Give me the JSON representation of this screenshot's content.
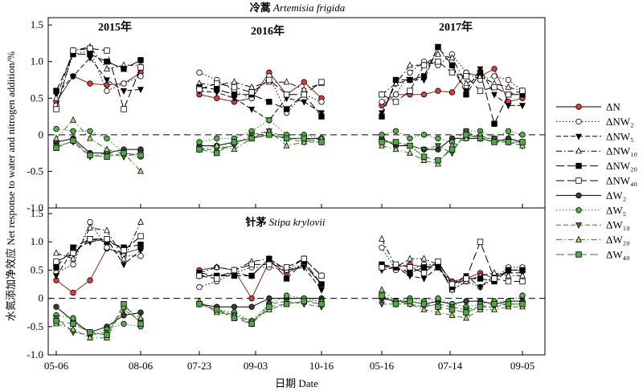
{
  "chart_data": {
    "type": "line",
    "ylabel": "水氮添加净效应 Net response to water and nitrogen addition/%",
    "xlabel": "日期 Date",
    "x_tick_labels": [
      "05-06",
      "08-06",
      "07-23",
      "09-03",
      "10-16",
      "05-16",
      "07-14",
      "09-05"
    ],
    "years": [
      "2015年",
      "2016年",
      "2017年"
    ],
    "y_ticks": [
      "1.5",
      "1.0",
      "0.5",
      "0",
      "-0.5",
      "-1.0"
    ],
    "ylim": [
      -1.0,
      1.6
    ],
    "grid": false,
    "legend_position": "right",
    "legend": [
      {
        "label": "ΔN",
        "marker": "circle",
        "fill": "#e23b3b",
        "dash": "solid"
      },
      {
        "label": "ΔNW₂",
        "marker": "circle",
        "fill": "#ffffff",
        "dash": "dotted"
      },
      {
        "label": "ΔNW₅",
        "marker": "triangle-down",
        "fill": "#000000",
        "dash": "dashed"
      },
      {
        "label": "ΔNW₁₀",
        "marker": "triangle-up",
        "fill": "#ffffff",
        "dash": "dashdot"
      },
      {
        "label": "ΔNW₂₀",
        "marker": "square",
        "fill": "#000000",
        "dash": "longdash"
      },
      {
        "label": "ΔNW₄₀",
        "marker": "square",
        "fill": "#ffffff",
        "dash": "longdash"
      },
      {
        "label": "ΔW₂",
        "marker": "circle",
        "fill": "#3a3a3a",
        "dash": "solid"
      },
      {
        "label": "ΔW₅",
        "marker": "circle",
        "fill": "#55b24a",
        "dash": "dotted"
      },
      {
        "label": "ΔW₁₀",
        "marker": "triangle-down",
        "fill": "#3e7a34",
        "dash": "dashed"
      },
      {
        "label": "ΔW₂₀",
        "marker": "triangle-up",
        "fill": "#b9dc78",
        "dash": "dashdot"
      },
      {
        "label": "ΔW₄₀",
        "marker": "square",
        "fill": "#55a64a",
        "dash": "longdash"
      }
    ],
    "panels": [
      {
        "title_cn": "冷蒿",
        "title_latin": "Artemisia frigida",
        "segments": [
          {
            "year": "2015年",
            "points": 6,
            "series": {
              "ΔN": [
                0.45,
                0.8,
                0.7,
                0.68,
                0.7,
                0.85
              ],
              "ΔNW₂": [
                0.4,
                1.1,
                1.15,
                0.6,
                0.7,
                0.8
              ],
              "ΔNW₅": [
                0.55,
                0.8,
                1.05,
                0.75,
                0.6,
                0.62
              ],
              "ΔNW₁₀": [
                0.5,
                1.15,
                1.2,
                0.9,
                0.95,
                0.95
              ],
              "ΔNW₂₀": [
                0.6,
                1.1,
                1.1,
                1.0,
                0.9,
                1.02
              ],
              "ΔNW₄₀": [
                0.35,
                1.15,
                1.18,
                1.15,
                0.35,
                0.92
              ],
              "ΔW₂": [
                -0.1,
                -0.05,
                -0.25,
                -0.25,
                -0.2,
                -0.2
              ],
              "ΔW₅": [
                0.08,
                0.05,
                0.05,
                -0.05,
                -0.25,
                -0.3
              ],
              "ΔW₁₀": [
                -0.15,
                -0.1,
                -0.3,
                -0.25,
                -0.3,
                -0.25
              ],
              "ΔW₂₀": [
                -0.05,
                0.2,
                -0.05,
                -0.2,
                -0.25,
                -0.5
              ],
              "ΔW₄₀": [
                -0.18,
                -0.08,
                -0.28,
                -0.3,
                -0.25,
                -0.28
              ]
            }
          },
          {
            "year": "2016年",
            "points": 8,
            "series": {
              "ΔN": [
                0.55,
                0.5,
                0.45,
                0.5,
                0.85,
                0.55,
                0.72,
                0.5
              ],
              "ΔNW₂": [
                0.85,
                0.75,
                0.6,
                0.5,
                0.8,
                0.3,
                0.55,
                0.45
              ],
              "ΔNW₅": [
                0.6,
                0.58,
                0.5,
                0.35,
                0.2,
                0.5,
                0.45,
                0.3
              ],
              "ΔNW₁₀": [
                0.7,
                0.68,
                0.72,
                0.65,
                0.72,
                0.72,
                0.62,
                0.7
              ],
              "ΔNW₂₀": [
                0.65,
                0.62,
                0.55,
                0.55,
                0.45,
                0.35,
                0.55,
                0.25
              ],
              "ΔNW₄₀": [
                0.62,
                0.7,
                0.65,
                0.58,
                0.75,
                0.55,
                0.55,
                0.72
              ],
              "ΔW₂": [
                -0.15,
                -0.15,
                -0.1,
                -0.05,
                0.0,
                -0.05,
                -0.05,
                -0.05
              ],
              "ΔW₅": [
                -0.1,
                -0.05,
                -0.05,
                0.05,
                0.2,
                0.0,
                0.0,
                -0.05
              ],
              "ΔW₁₀": [
                -0.2,
                -0.2,
                -0.15,
                0.0,
                0.05,
                -0.05,
                -0.1,
                -0.1
              ],
              "ΔW₂₀": [
                -0.2,
                -0.15,
                -0.2,
                -0.05,
                0.05,
                -0.15,
                -0.1,
                -0.05
              ],
              "ΔW₄₀": [
                -0.2,
                -0.25,
                -0.1,
                -0.05,
                0.0,
                -0.05,
                -0.05,
                -0.1
              ]
            }
          },
          {
            "year": "2017年",
            "points": 11,
            "series": {
              "ΔN": [
                0.4,
                0.55,
                0.55,
                0.55,
                0.6,
                0.58,
                0.85,
                0.8,
                0.9,
                0.45,
                0.5
              ],
              "ΔNW₂": [
                0.45,
                0.55,
                0.85,
                1.0,
                0.95,
                1.1,
                0.85,
                0.75,
                0.8,
                0.75,
                0.6
              ],
              "ΔNW₅": [
                0.3,
                0.7,
                0.75,
                0.75,
                1.2,
                0.95,
                0.6,
                0.9,
                0.55,
                0.4,
                0.4
              ],
              "ΔNW₁₀": [
                0.55,
                0.7,
                0.95,
                0.95,
                1.1,
                1.05,
                0.7,
                0.8,
                0.7,
                0.65,
                0.6
              ],
              "ΔNW₂₀": [
                0.25,
                0.75,
                0.75,
                0.8,
                1.2,
                0.95,
                0.55,
                0.85,
                0.15,
                0.55,
                0.55
              ],
              "ΔNW₄₀": [
                0.55,
                0.45,
                0.6,
                0.95,
                1.0,
                0.85,
                0.8,
                0.6,
                0.65,
                0.55,
                0.6
              ],
              "ΔW₂": [
                -0.05,
                -0.15,
                -0.15,
                -0.2,
                -0.2,
                -0.05,
                -0.05,
                -0.05,
                -0.1,
                -0.05,
                -0.1
              ],
              "ΔW₅": [
                0.0,
                0.05,
                -0.05,
                0.0,
                -0.05,
                -0.1,
                0.05,
                0.05,
                -0.05,
                0.05,
                0.0
              ],
              "ΔW₁₀": [
                -0.1,
                -0.1,
                -0.15,
                -0.2,
                -0.15,
                -0.25,
                0.05,
                -0.05,
                -0.05,
                -0.1,
                -0.15
              ],
              "ΔW₂₀": [
                -0.15,
                -0.2,
                -0.25,
                -0.35,
                -0.4,
                -0.15,
                -0.05,
                0.0,
                -0.1,
                -0.1,
                -0.15
              ],
              "ΔW₄₀": [
                -0.1,
                -0.1,
                -0.15,
                -0.3,
                -0.35,
                -0.2,
                0.0,
                -0.05,
                -0.1,
                -0.1,
                -0.1
              ]
            }
          }
        ]
      },
      {
        "title_cn": "针茅",
        "title_latin": "Stipa krylovii",
        "segments": [
          {
            "year": "2015年",
            "points": 6,
            "series": {
              "ΔN": [
                0.32,
                0.1,
                0.32,
                0.88,
                0.8,
                0.88
              ],
              "ΔNW₂": [
                0.45,
                0.6,
                1.35,
                0.9,
                0.75,
                0.75
              ],
              "ΔNW₅": [
                0.4,
                0.85,
                1.0,
                1.05,
                0.6,
                0.85
              ],
              "ΔNW₁₀": [
                0.8,
                0.7,
                1.25,
                1.2,
                0.7,
                1.35
              ],
              "ΔNW₂₀": [
                0.55,
                0.9,
                1.05,
                1.0,
                0.9,
                0.95
              ],
              "ΔNW₄₀": [
                0.65,
                0.8,
                1.05,
                1.05,
                0.85,
                1.1
              ],
              "ΔW₂": [
                -0.15,
                -0.4,
                -0.6,
                -0.5,
                -0.3,
                -0.25
              ],
              "ΔW₅": [
                -0.3,
                -0.35,
                -0.65,
                -0.55,
                -0.45,
                -0.5
              ],
              "ΔW₁₀": [
                -0.35,
                -0.6,
                -0.65,
                -0.6,
                -0.2,
                -0.4
              ],
              "ΔW₂₀": [
                -0.45,
                -0.55,
                -0.7,
                -0.7,
                -0.15,
                -0.35
              ],
              "ΔW₄₀": [
                -0.4,
                -0.45,
                -0.6,
                -0.65,
                -0.1,
                -0.45
              ]
            }
          },
          {
            "year": "2016年",
            "points": 8,
            "series": {
              "ΔN": [
                0.5,
                0.55,
                0.5,
                0.0,
                0.65,
                0.45,
                0.6,
                0.25
              ],
              "ΔNW₂": [
                0.2,
                0.3,
                0.45,
                0.55,
                0.55,
                0.5,
                0.6,
                0.25
              ],
              "ΔNW₅": [
                0.4,
                0.4,
                0.45,
                0.4,
                0.7,
                0.5,
                0.55,
                0.15
              ],
              "ΔNW₁₀": [
                0.45,
                0.55,
                0.5,
                0.65,
                0.7,
                0.5,
                0.7,
                0.4
              ],
              "ΔNW₂₀": [
                0.45,
                0.4,
                0.4,
                0.4,
                0.7,
                0.35,
                0.65,
                0.25
              ],
              "ΔNW₄₀": [
                0.4,
                0.35,
                0.5,
                0.6,
                0.6,
                0.55,
                0.7,
                0.4
              ],
              "ΔW₂": [
                -0.1,
                -0.15,
                -0.15,
                -0.15,
                0.0,
                0.0,
                0.0,
                0.0
              ],
              "ΔW₅": [
                -0.1,
                -0.2,
                -0.25,
                -0.4,
                -0.1,
                0.05,
                0.0,
                -0.05
              ],
              "ΔW₁₀": [
                -0.1,
                -0.2,
                -0.3,
                -0.45,
                -0.1,
                -0.05,
                -0.1,
                -0.15
              ],
              "ΔW₂₀": [
                -0.05,
                -0.25,
                -0.3,
                -0.4,
                -0.2,
                -0.1,
                -0.05,
                -0.05
              ],
              "ΔW₄₀": [
                -0.1,
                -0.2,
                -0.35,
                -0.45,
                -0.15,
                -0.1,
                -0.05,
                -0.1
              ]
            }
          },
          {
            "year": "2017年",
            "points": 11,
            "series": {
              "ΔN": [
                0.55,
                0.55,
                0.6,
                0.55,
                0.6,
                0.3,
                0.35,
                0.45,
                0.35,
                0.5,
                0.5
              ],
              "ΔNW₂": [
                0.9,
                0.5,
                0.5,
                0.6,
                0.6,
                0.15,
                0.3,
                0.2,
                0.35,
                0.55,
                0.55
              ],
              "ΔNW₅": [
                0.5,
                0.55,
                0.4,
                0.35,
                0.55,
                0.25,
                0.4,
                0.2,
                0.4,
                0.45,
                0.45
              ],
              "ΔNW₁₀": [
                1.05,
                0.55,
                0.7,
                0.7,
                0.6,
                0.15,
                0.3,
                0.4,
                0.45,
                0.4,
                0.4
              ],
              "ΔNW₂₀": [
                0.6,
                0.55,
                0.45,
                0.55,
                0.55,
                0.2,
                0.35,
                0.35,
                0.3,
                0.5,
                0.5
              ],
              "ΔNW₄₀": [
                0.55,
                0.6,
                0.55,
                0.45,
                0.65,
                0.25,
                0.35,
                1.0,
                0.35,
                0.3,
                0.3
              ],
              "ΔW₂": [
                0.0,
                -0.05,
                -0.05,
                -0.1,
                -0.05,
                -0.1,
                -0.05,
                -0.05,
                -0.1,
                -0.05,
                -0.05
              ],
              "ΔW₅": [
                0.05,
                -0.05,
                0.0,
                -0.05,
                0.0,
                -0.1,
                -0.15,
                -0.1,
                -0.05,
                -0.05,
                0.05
              ],
              "ΔW₁₀": [
                -0.1,
                -0.1,
                -0.1,
                -0.15,
                -0.1,
                -0.15,
                -0.2,
                -0.15,
                -0.15,
                -0.1,
                -0.1
              ],
              "ΔW₂₀": [
                0.15,
                -0.05,
                -0.1,
                -0.2,
                -0.25,
                -0.3,
                -0.35,
                -0.2,
                -0.2,
                -0.15,
                -0.15
              ],
              "ΔW₄₀": [
                0.05,
                -0.1,
                -0.05,
                -0.1,
                -0.15,
                -0.2,
                -0.25,
                -0.15,
                -0.1,
                -0.1,
                -0.1
              ]
            }
          }
        ]
      }
    ]
  }
}
